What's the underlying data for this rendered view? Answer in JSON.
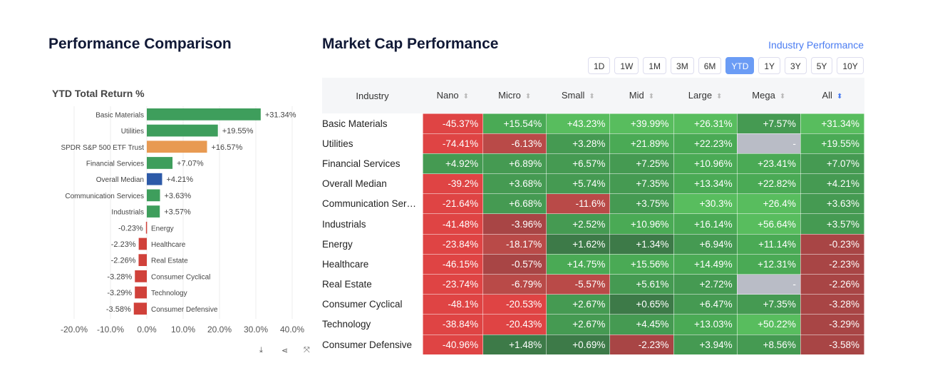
{
  "left": {
    "title": "Performance Comparison",
    "chart_title": "YTD Total Return %",
    "tools": [
      "download-icon",
      "share-icon",
      "expand-icon"
    ]
  },
  "chart_data": {
    "type": "bar",
    "orientation": "horizontal",
    "title": "YTD Total Return %",
    "categories": [
      "Basic Materials",
      "Utilities",
      "SPDR S&P 500 ETF Trust",
      "Financial Services",
      "Overall Median",
      "Communication Services",
      "Industrials",
      "Energy",
      "Healthcare",
      "Real Estate",
      "Consumer Cyclical",
      "Technology",
      "Consumer Defensive"
    ],
    "values": [
      31.34,
      19.55,
      16.57,
      7.07,
      4.21,
      3.63,
      3.57,
      -0.23,
      -2.23,
      -2.26,
      -3.28,
      -3.29,
      -3.58
    ],
    "labels": [
      "+31.34%",
      "+19.55%",
      "+16.57%",
      "+7.07%",
      "+4.21%",
      "+3.63%",
      "+3.57%",
      "-0.23%",
      "-2.23%",
      "-2.26%",
      "-3.28%",
      "-3.29%",
      "-3.58%"
    ],
    "colors": [
      "#3e9e5c",
      "#3e9e5c",
      "#e89a52",
      "#3e9e5c",
      "#2d5aa8",
      "#3e9e5c",
      "#3e9e5c",
      "#d0413a",
      "#d0413a",
      "#d0413a",
      "#d0413a",
      "#d0413a",
      "#d0413a"
    ],
    "xlim": [
      -20,
      40
    ],
    "xticks": [
      "-20.0%",
      "-10.0%",
      "0.0%",
      "10.0%",
      "20.0%",
      "30.0%",
      "40.0%"
    ],
    "grid": true
  },
  "right": {
    "title": "Market Cap Performance",
    "link": "Industry Performance",
    "periods": [
      "1D",
      "1W",
      "1M",
      "3M",
      "6M",
      "YTD",
      "1Y",
      "3Y",
      "5Y",
      "10Y"
    ],
    "active_period": "YTD",
    "columns": [
      "Industry",
      "Nano",
      "Micro",
      "Small",
      "Mid",
      "Large",
      "Mega",
      "All"
    ],
    "sorted_column": "All",
    "rows": [
      [
        "Basic Materials",
        "-45.37%",
        "+15.54%",
        "+43.23%",
        "+39.99%",
        "+26.31%",
        "+7.57%",
        "+31.34%"
      ],
      [
        "Utilities",
        "-74.41%",
        "-6.13%",
        "+3.28%",
        "+21.89%",
        "+22.23%",
        "-",
        "+19.55%"
      ],
      [
        "Financial Services",
        "+4.92%",
        "+6.89%",
        "+6.57%",
        "+7.25%",
        "+10.96%",
        "+23.41%",
        "+7.07%"
      ],
      [
        "Overall Median",
        "-39.2%",
        "+3.68%",
        "+5.74%",
        "+7.35%",
        "+13.34%",
        "+22.82%",
        "+4.21%"
      ],
      [
        "Communication Services",
        "-21.64%",
        "+6.68%",
        "-11.6%",
        "+3.75%",
        "+30.3%",
        "+26.4%",
        "+3.63%"
      ],
      [
        "Industrials",
        "-41.48%",
        "-3.96%",
        "+2.52%",
        "+10.96%",
        "+16.14%",
        "+56.64%",
        "+3.57%"
      ],
      [
        "Energy",
        "-23.84%",
        "-18.17%",
        "+1.62%",
        "+1.34%",
        "+6.94%",
        "+11.14%",
        "-0.23%"
      ],
      [
        "Healthcare",
        "-46.15%",
        "-0.57%",
        "+14.75%",
        "+15.56%",
        "+14.49%",
        "+12.31%",
        "-2.23%"
      ],
      [
        "Real Estate",
        "-23.74%",
        "-6.79%",
        "-5.57%",
        "+5.61%",
        "+2.72%",
        "-",
        "-2.26%"
      ],
      [
        "Consumer Cyclical",
        "-48.1%",
        "-20.53%",
        "+2.67%",
        "+0.65%",
        "+6.47%",
        "+7.35%",
        "-3.28%"
      ],
      [
        "Technology",
        "-38.84%",
        "-20.43%",
        "+2.67%",
        "+4.45%",
        "+13.03%",
        "+50.22%",
        "-3.29%"
      ],
      [
        "Consumer Defensive",
        "-40.96%",
        "+1.48%",
        "+0.69%",
        "-2.23%",
        "+3.94%",
        "+8.56%",
        "-3.58%"
      ]
    ]
  }
}
